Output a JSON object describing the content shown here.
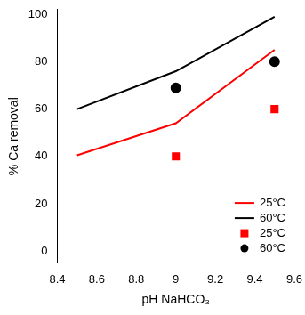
{
  "chart_data": {
    "type": "line",
    "x_label": "pH NaHCO₃",
    "y_label": "% Ca removal",
    "xlim": [
      8.4,
      9.6
    ],
    "xticks": [
      8.4,
      8.6,
      8.8,
      9,
      9.2,
      9.4,
      9.6
    ],
    "ylim": [
      -5,
      102
    ],
    "yticks": [
      0,
      20,
      40,
      60,
      80,
      100
    ],
    "grid": false,
    "legend": "lower right",
    "series": [
      {
        "name": "25°C",
        "type": "line",
        "color": "#ff0000",
        "marker": "none",
        "line_style": "solid",
        "x": [
          8.5,
          9,
          9.5
        ],
        "values": [
          40.5,
          54,
          85
        ]
      },
      {
        "name": "60°C",
        "type": "line",
        "color": "#000000",
        "marker": "none",
        "line_style": "solid",
        "x": [
          8.5,
          9,
          9.5
        ],
        "values": [
          60,
          76,
          99
        ]
      },
      {
        "name": "25°C",
        "type": "scatter",
        "color": "#ff0000",
        "marker": "square",
        "x": [
          9,
          9.5
        ],
        "values": [
          40,
          60
        ]
      },
      {
        "name": "60°C",
        "type": "scatter",
        "color": "#000000",
        "marker": "circle",
        "x": [
          9,
          9.5
        ],
        "values": [
          69,
          80
        ]
      }
    ]
  }
}
